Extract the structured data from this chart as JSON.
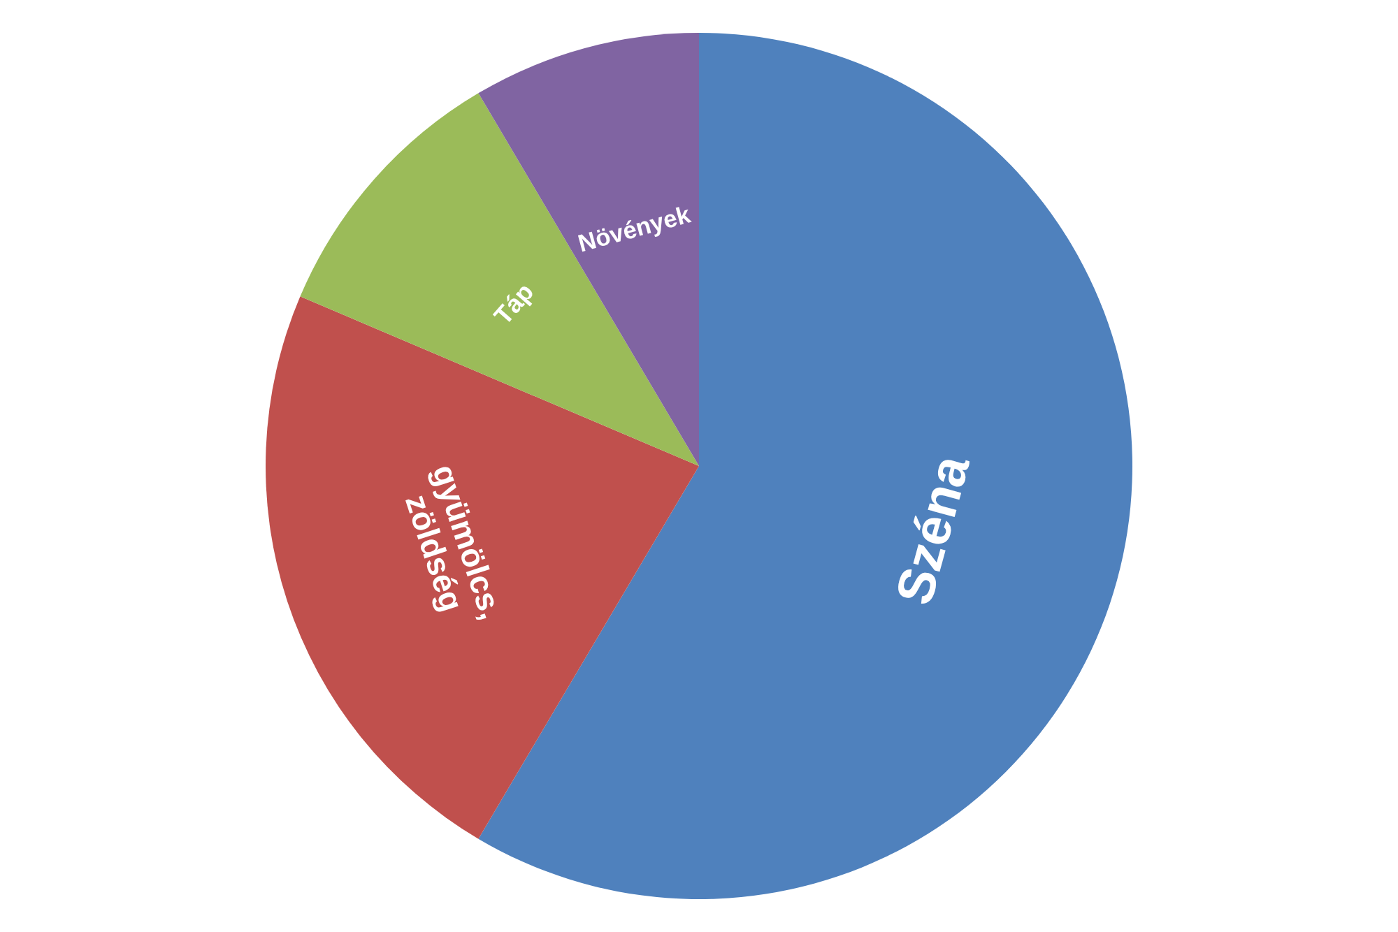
{
  "chart_data": {
    "type": "pie",
    "categories": [
      "Széna",
      "gyümölcs, zöldség",
      "Táp",
      "Növények"
    ],
    "values": [
      58.5,
      22.9,
      10.1,
      8.5
    ],
    "colors": [
      "#4f81bd",
      "#c0504d",
      "#9bbb59",
      "#8064a2"
    ]
  }
}
